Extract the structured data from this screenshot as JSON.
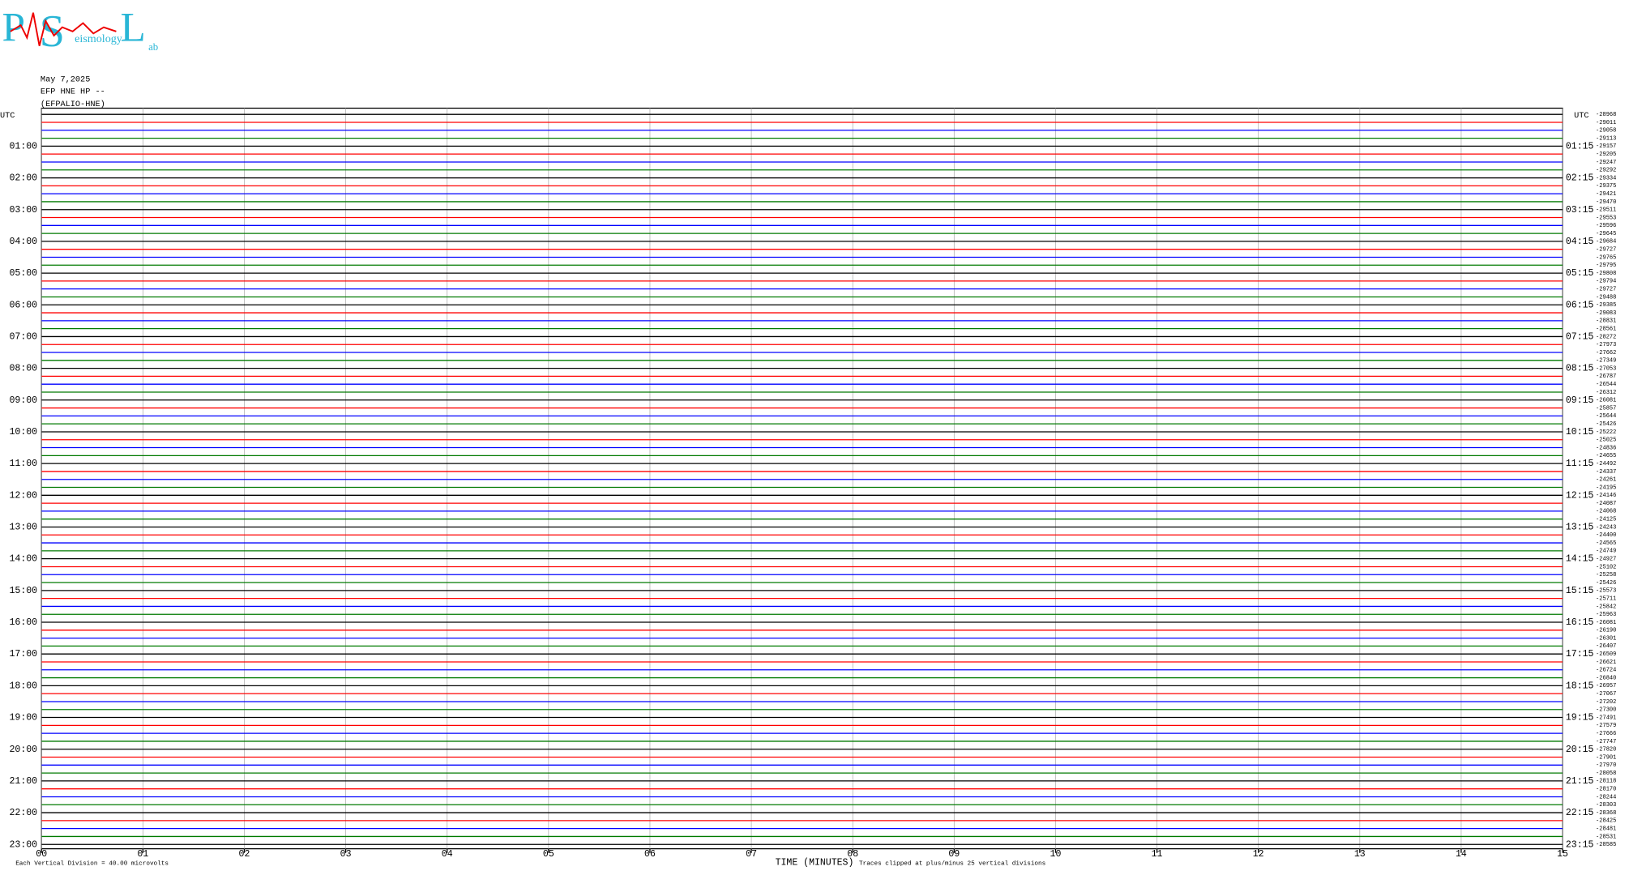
{
  "logo": {
    "p": "P",
    "s": "S",
    "l": "L",
    "seismology": "eismology",
    "lab": "ab"
  },
  "chart_data": {
    "type": "helicorder",
    "header": [
      "May 7,2025",
      "EFP HNE HP --",
      "(EFPALIO-HNE)"
    ],
    "left_label_title": "UTC",
    "right_label_title": "UTC",
    "left_labels": [
      "01:00",
      "02:00",
      "03:00",
      "04:00",
      "05:00",
      "06:00",
      "07:00",
      "08:00",
      "09:00",
      "10:00",
      "11:00",
      "12:00",
      "13:00",
      "14:00",
      "15:00",
      "16:00",
      "17:00",
      "18:00",
      "19:00",
      "20:00",
      "21:00",
      "22:00",
      "23:00"
    ],
    "right_labels": [
      "01:15",
      "02:15",
      "03:15",
      "04:15",
      "05:15",
      "06:15",
      "07:15",
      "08:15",
      "09:15",
      "10:15",
      "11:15",
      "12:15",
      "13:15",
      "14:15",
      "15:15",
      "16:15",
      "17:15",
      "18:15",
      "19:15",
      "20:15",
      "21:15",
      "22:15",
      "23:15"
    ],
    "trace_offsets": [
      -28968,
      -29011,
      -29058,
      -29113,
      -29157,
      -29205,
      -29247,
      -29292,
      -29334,
      -29375,
      -29421,
      -29470,
      -29511,
      -29553,
      -29596,
      -29645,
      -29684,
      -29727,
      -29765,
      -29795,
      -29808,
      -29794,
      -29727,
      -29488,
      -29385,
      -29083,
      -28831,
      -28561,
      -28272,
      -27973,
      -27662,
      -27349,
      -27053,
      -26787,
      -26544,
      -26312,
      -26081,
      -25857,
      -25644,
      -25426,
      -25222,
      -25025,
      -24836,
      -24655,
      -24492,
      -24337,
      -24261,
      -24195,
      -24146,
      -24087,
      -24068,
      -24125,
      -24243,
      -24400,
      -24565,
      -24749,
      -24927,
      -25102,
      -25258,
      -25426,
      -25573,
      -25711,
      -25842,
      -25963,
      -26081,
      -26190,
      -26301,
      -26407,
      -26509,
      -26621,
      -26724,
      -26840,
      -26957,
      -27067,
      -27202,
      -27300,
      -27491,
      -27579,
      -27666,
      -27747,
      -27820,
      -27901,
      -27970,
      -28058,
      -28118,
      -28170,
      -28244,
      -28303,
      -28368,
      -28425,
      -28481,
      -28531,
      -28585
    ],
    "trace_colors": [
      "#000000",
      "#ff0000",
      "#0000ff",
      "#007a00"
    ],
    "xlabel": "TIME (MINUTES)",
    "xlim": [
      0,
      15
    ],
    "xticks": [
      {
        "value": 0,
        "label": "00"
      },
      {
        "value": 1,
        "label": "01"
      },
      {
        "value": 2,
        "label": "02"
      },
      {
        "value": 3,
        "label": "03"
      },
      {
        "value": 4,
        "label": "04"
      },
      {
        "value": 5,
        "label": "05"
      },
      {
        "value": 6,
        "label": "06"
      },
      {
        "value": 7,
        "label": "07"
      },
      {
        "value": 8,
        "label": "08"
      },
      {
        "value": 9,
        "label": "09"
      },
      {
        "value": 10,
        "label": "10"
      },
      {
        "value": 11,
        "label": "11"
      },
      {
        "value": 12,
        "label": "12"
      },
      {
        "value": 13,
        "label": "13"
      },
      {
        "value": 14,
        "label": "14"
      },
      {
        "value": 15,
        "label": "15"
      }
    ],
    "grid": true,
    "footer_left": "Each Vertical Division =   40.00 microvolts",
    "footer_right": "Traces clipped at plus/minus 25 vertical divisions"
  }
}
